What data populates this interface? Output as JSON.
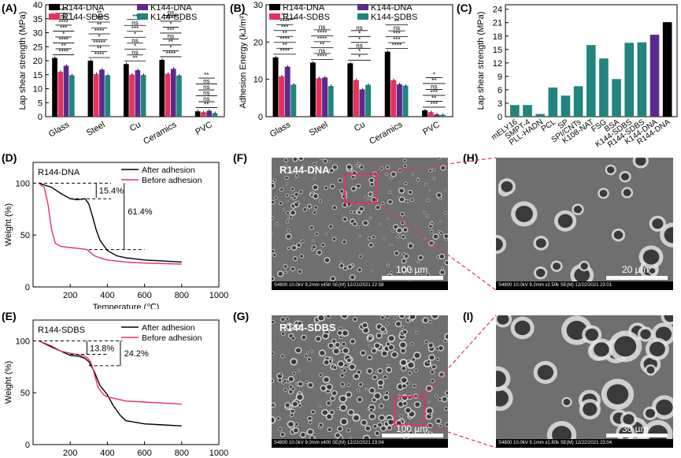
{
  "panel_labels": {
    "a": "(A)",
    "b": "(B)",
    "c": "(C)",
    "d": "(D)",
    "e": "(E)",
    "f": "(F)",
    "g": "(G)",
    "h": "(H)",
    "i": "(I)"
  },
  "colors": {
    "R144-DNA": "#000000",
    "R144-SDBS": "#e8305f",
    "K144-DNA": "#5c2a8e",
    "K144-SDBS": "#21857d",
    "teal": "#21857d",
    "pink": "#e8305f"
  },
  "chart_data": [
    {
      "id": "A",
      "type": "bar",
      "ylabel": "Lap shear strength (MPa)",
      "ylim": [
        0,
        40
      ],
      "yticks": [
        0,
        5,
        10,
        15,
        20,
        25,
        30,
        35,
        40
      ],
      "categories": [
        "Glass",
        "Steel",
        "Cu",
        "Ceramics",
        "PVC"
      ],
      "series": [
        {
          "name": "R144-DNA",
          "values": [
            21.0,
            20.0,
            18.8,
            20.3,
            1.9
          ]
        },
        {
          "name": "R144-SDBS",
          "values": [
            16.0,
            15.2,
            15.0,
            15.3,
            1.6
          ]
        },
        {
          "name": "K144-DNA",
          "values": [
            18.2,
            16.8,
            16.6,
            17.1,
            2.1
          ]
        },
        {
          "name": "K144-SDBS",
          "values": [
            14.8,
            14.8,
            14.9,
            14.7,
            1.3
          ]
        }
      ],
      "significance": [
        [
          "****",
          "**",
          "****",
          "*",
          "***",
          "****",
          "ns",
          "****"
        ],
        [
          "****",
          "**",
          "*****",
          "*",
          "****",
          "**",
          "**",
          "**"
        ],
        [
          "**",
          "ns",
          "*",
          "ns",
          "*",
          "***",
          "ns",
          "**"
        ],
        [
          "****",
          "*",
          "**",
          "ns",
          "***",
          "*",
          "****",
          "ns"
        ],
        [
          "**",
          "ns",
          "ns",
          "ns",
          "ns",
          "**"
        ]
      ]
    },
    {
      "id": "B",
      "type": "bar",
      "ylabel": "Adhesion Energy (kJ/m²)",
      "ylim": [
        0,
        30
      ],
      "yticks": [
        0,
        10,
        20,
        30
      ],
      "categories": [
        "Glass",
        "Steel",
        "Cu",
        "Ceramics",
        "PVC"
      ],
      "series": [
        {
          "name": "R144-DNA",
          "values": [
            15.9,
            14.5,
            14.3,
            17.4,
            1.7
          ]
        },
        {
          "name": "R144-SDBS",
          "values": [
            10.8,
            10.3,
            9.8,
            9.8,
            1.2
          ]
        },
        {
          "name": "K144-DNA",
          "values": [
            13.4,
            10.5,
            7.3,
            8.7,
            0.6
          ]
        },
        {
          "name": "K144-SDBS",
          "values": [
            8.6,
            8.2,
            8.5,
            8.3,
            0.5
          ]
        }
      ],
      "significance": [
        [
          "****",
          "**",
          "****",
          "**",
          "***",
          "****",
          "***"
        ],
        [
          "****",
          "ns",
          "**",
          "****",
          "****",
          "ns"
        ],
        [
          "*",
          "*",
          "ns",
          "*",
          "*",
          "ns"
        ],
        [
          "****",
          "***",
          "***",
          "ns",
          "**"
        ],
        [
          "***",
          "**",
          "***",
          "ns",
          "**",
          "*"
        ]
      ]
    },
    {
      "id": "C",
      "type": "bar",
      "ylabel": "Lap shear strength (MPa)",
      "ylim": [
        0,
        25
      ],
      "yticks": [
        0,
        3,
        6,
        9,
        12,
        15,
        18,
        21,
        24
      ],
      "categories": [
        "mELY16",
        "SMPT-4",
        "PLL-HADN",
        "PCL",
        "SP",
        "SPI/CNTs",
        "K108-NAT",
        "FSG",
        "BSA",
        "K144-SDBS",
        "R144-SDBS",
        "K144-DNA",
        "R144-DNA"
      ],
      "values": [
        2.6,
        2.6,
        0.6,
        6.5,
        4.7,
        6.8,
        16.0,
        13.0,
        8.4,
        16.5,
        16.6,
        18.3,
        21.1
      ]
    },
    {
      "id": "D",
      "type": "line",
      "title": "R144-DNA",
      "xlabel": "Temperature (℃)",
      "ylabel": "Weight (%)",
      "xlim": [
        0,
        1000
      ],
      "ylim": [
        0,
        120
      ],
      "xticks": [
        200,
        400,
        600,
        800,
        1000
      ],
      "yticks": [
        0,
        50,
        100
      ],
      "series": [
        {
          "name": "After adhesion",
          "x": [
            30,
            100,
            150,
            200,
            240,
            280,
            300,
            320,
            340,
            360,
            400,
            450,
            500,
            600,
            700,
            800
          ],
          "y": [
            100,
            96,
            90,
            85,
            84,
            85,
            80,
            68,
            55,
            45,
            35,
            30,
            28,
            26,
            25,
            24
          ]
        },
        {
          "name": "Before adhesion",
          "x": [
            30,
            60,
            80,
            100,
            120,
            150,
            200,
            250,
            290,
            310,
            330,
            360,
            400,
            500,
            600,
            800
          ],
          "y": [
            100,
            96,
            80,
            55,
            42,
            39,
            38,
            37,
            36,
            33,
            30,
            28,
            26,
            24,
            23,
            22
          ]
        }
      ],
      "annotations": [
        "15.4%",
        "61.4%"
      ]
    },
    {
      "id": "E",
      "type": "line",
      "title": "R144-SDBS",
      "xlabel": "Temperature (℃)",
      "ylabel": "Weight (%)",
      "xlim": [
        0,
        1000
      ],
      "ylim": [
        0,
        120
      ],
      "xticks": [
        200,
        400,
        600,
        800,
        1000
      ],
      "yticks": [
        0,
        50,
        100
      ],
      "series": [
        {
          "name": "After adhesion",
          "x": [
            30,
            100,
            150,
            200,
            250,
            280,
            300,
            330,
            360,
            400,
            430,
            470,
            500,
            600,
            700,
            800
          ],
          "y": [
            100,
            94,
            90,
            86,
            85,
            83,
            80,
            70,
            57,
            48,
            38,
            28,
            23,
            20,
            19,
            18
          ]
        },
        {
          "name": "Before adhesion",
          "x": [
            30,
            100,
            150,
            200,
            260,
            290,
            310,
            330,
            350,
            380,
            400,
            450,
            500,
            600,
            700,
            800
          ],
          "y": [
            100,
            95,
            90,
            88,
            86,
            84,
            80,
            68,
            55,
            48,
            46,
            44,
            42,
            41,
            40,
            39
          ]
        }
      ],
      "annotations": [
        "13.8%",
        "24.2%"
      ]
    }
  ],
  "sem": {
    "f": {
      "title": "R144-DNA",
      "scale": "100 µm",
      "info": "S4800 10.0kV 9.2mm x450 SE(M) 12/22/2021 22:58"
    },
    "g": {
      "title": "R144-SDBS",
      "scale": "100 µm",
      "info": "S4800 10.0kV 9.0mm x400 SE(M) 12/22/2021 23:04"
    },
    "h": {
      "scale": "20 µm",
      "info": "S4800 10.0kV 9.2mm x2.50k SE(M) 12/22/2021 23:01"
    },
    "i": {
      "scale": "30 µm",
      "info": "S4800 10.0kV 9.1mm x1.80k SE(M) 12/22/2021 23:04"
    }
  }
}
